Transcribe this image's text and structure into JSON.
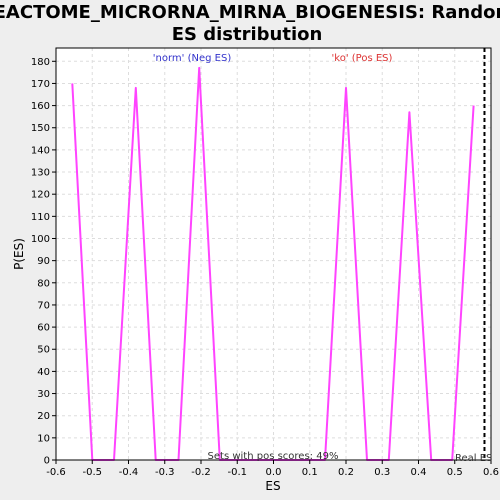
{
  "chart_data": {
    "type": "line",
    "title_line1": "REACTOME_MICRORNA_MIRNA_BIOGENESIS: Random",
    "title_line2": "ES distribution",
    "xlabel": "ES",
    "ylabel": "P(ES)",
    "xlim": [
      -0.6,
      0.6
    ],
    "ylim": [
      0,
      186
    ],
    "xticks": [
      -0.6,
      -0.5,
      -0.4,
      -0.3,
      -0.2,
      -0.1,
      0.0,
      0.1,
      0.2,
      0.3,
      0.4,
      0.5,
      0.6
    ],
    "xtick_labels": [
      "-0.6",
      "-0.5",
      "-0.4",
      "-0.3",
      "-0.2",
      "-0.1",
      "0.0",
      "0.1",
      "0.2",
      "0.3",
      "0.4",
      "0.5",
      "0.6"
    ],
    "yticks": [
      0,
      10,
      20,
      30,
      40,
      50,
      60,
      70,
      80,
      90,
      100,
      110,
      120,
      130,
      140,
      150,
      160,
      170,
      180
    ],
    "grid": true,
    "series": [
      {
        "color": "#ff44ff",
        "x": [
          -0.555,
          -0.5,
          -0.44,
          -0.38,
          -0.325,
          -0.262,
          -0.205,
          -0.148,
          0.142,
          0.2,
          0.258,
          0.318,
          0.375,
          0.435,
          0.493,
          0.552
        ],
        "y": [
          170,
          0,
          0,
          168,
          0,
          0,
          177,
          0,
          0,
          168,
          0,
          0,
          157,
          0,
          0,
          160
        ]
      }
    ],
    "real_es": 0.582,
    "real_es_label": "Real ES",
    "real_es_color": "#000000",
    "annotations": {
      "neg_label": "'norm' (Neg ES)",
      "neg_color": "#3333cc",
      "pos_label": "'ko' (Pos ES)",
      "pos_color": "#dd3333",
      "sets_label": "Sets with pos scores: 49%"
    }
  }
}
